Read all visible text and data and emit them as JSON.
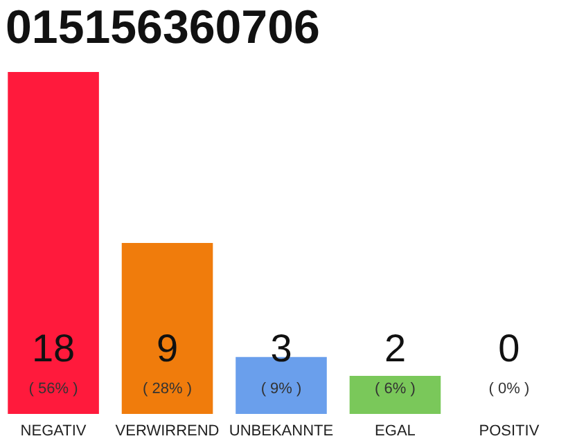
{
  "chart_data": {
    "type": "bar",
    "title": "015156360706",
    "categories": [
      "NEGATIV",
      "VERWIRREND",
      "UNBEKANNTE",
      "EGAL",
      "POSITIV"
    ],
    "values": [
      18,
      9,
      3,
      2,
      0
    ],
    "colors": [
      "#ff1a3c",
      "#f07c0c",
      "#6a9fec",
      "#7ac85a",
      "#22aa44"
    ],
    "value_labels": [
      "18",
      "9",
      "3",
      "2",
      "0"
    ],
    "annotations": [
      "( 56% )",
      "( 28% )",
      "( 9% )",
      "( 6% )",
      "( 0% )"
    ],
    "tick_labels": "x"
  }
}
